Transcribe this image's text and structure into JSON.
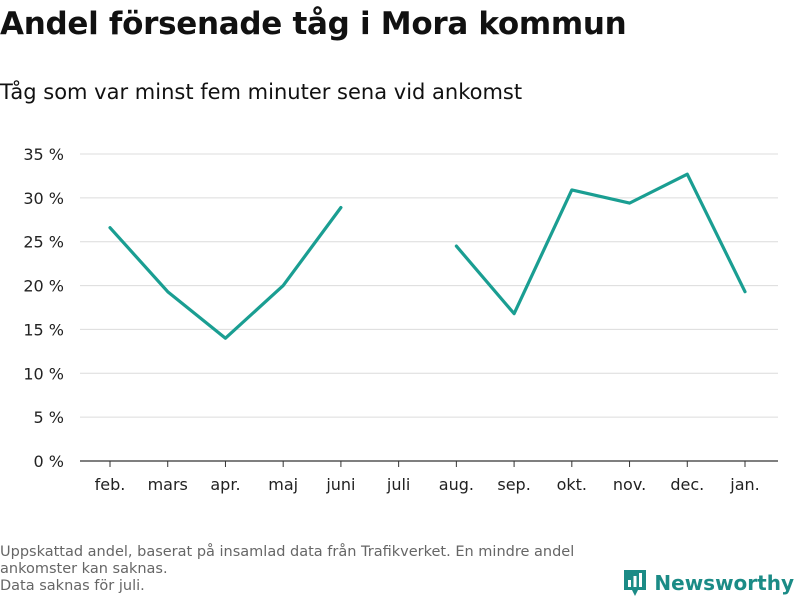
{
  "title": "Andel försenade tåg i Mora kommun",
  "subtitle": "Tåg som var minst fem minuter sena vid ankomst",
  "chart_data": {
    "type": "line",
    "categories": [
      "feb.",
      "mars",
      "apr.",
      "maj",
      "juni",
      "juli",
      "aug.",
      "sep.",
      "okt.",
      "nov.",
      "dec.",
      "jan."
    ],
    "series": [
      {
        "values": [
          26.6,
          19.3,
          14.0,
          20.0,
          28.9,
          null,
          24.5,
          16.8,
          30.9,
          29.4,
          32.7,
          19.3
        ]
      }
    ],
    "ylim": [
      0,
      35
    ],
    "yticks": [
      0,
      5,
      10,
      15,
      20,
      25,
      30,
      35
    ],
    "ytick_suffix": " %",
    "line_color": "#1a9e92",
    "grid": true
  },
  "footer": {
    "note1": "Uppskattad andel, baserat på insamlad data från Trafikverket. En mindre andel ankomster kan saknas.",
    "note2": "Data saknas för juli."
  },
  "brand": {
    "name": "Newsworthy",
    "icon": "bar-chart-logo-icon",
    "color": "#1b8b86"
  }
}
